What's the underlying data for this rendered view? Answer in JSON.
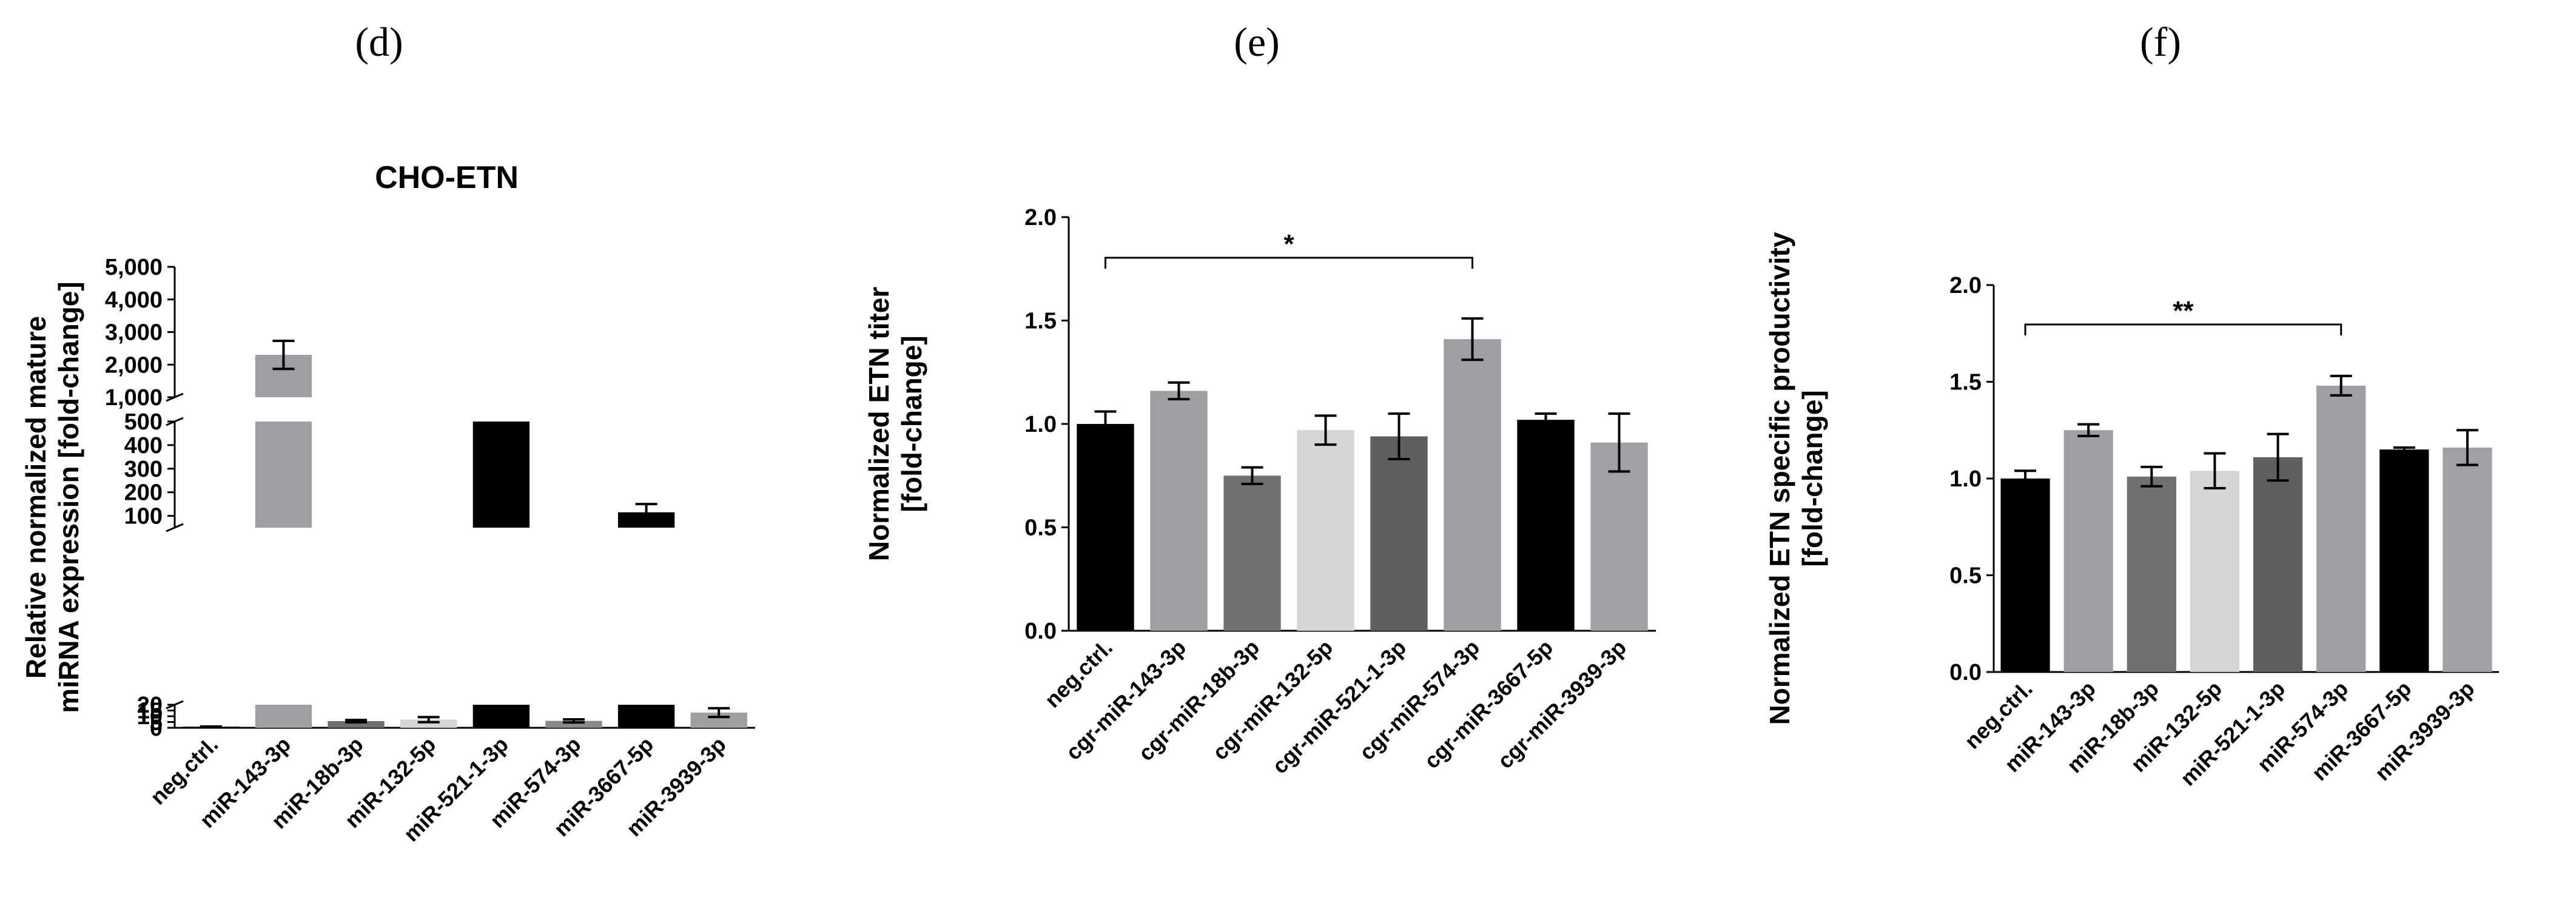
{
  "panels": {
    "d": {
      "label": "(d)"
    },
    "e": {
      "label": "(e)"
    },
    "f": {
      "label": "(f)"
    }
  },
  "chart_data": [
    {
      "id": "d",
      "type": "bar",
      "title": "CHO-ETN",
      "ylabel_lines": [
        "Relative normalized mature",
        "miRNA expression [fold-change]"
      ],
      "xlabel": "",
      "axis_break": true,
      "segments": [
        {
          "range": [
            0,
            20
          ],
          "ticks": [
            "0",
            "5",
            "10",
            "15",
            "20"
          ]
        },
        {
          "range": [
            50,
            500
          ],
          "ticks": [
            "100",
            "200",
            "300",
            "400",
            "500"
          ]
        },
        {
          "range": [
            1000,
            5000
          ],
          "ticks": [
            "1,000",
            "2,000",
            "3,000",
            "4,000",
            "5,000"
          ]
        }
      ],
      "categories": [
        "neg.ctrl.",
        "miR-143-3p",
        "miR-18b-3p",
        "miR-132-5p",
        "miR-521-1-3p",
        "miR-574-3p",
        "miR-3667-5p",
        "miR-3939-3p"
      ],
      "values": [
        1,
        2300,
        5.8,
        7.1,
        500,
        6.0,
        115,
        13.2
      ],
      "errors": [
        0.1,
        430,
        1.0,
        2.2,
        80,
        1.3,
        35,
        3.8
      ],
      "colors": [
        "#000000",
        "#9e9ea3",
        "#6f6f6f",
        "#d5d5d5",
        "#000000",
        "#8a8a8a",
        "#000000",
        "#9e9ea3"
      ]
    },
    {
      "id": "e",
      "type": "bar",
      "title": "",
      "ylabel_lines": [
        "Normalized ETN titer",
        "[fold-change]"
      ],
      "xlabel": "",
      "ylim": [
        0,
        2.0
      ],
      "yticks": [
        "0.0",
        "0.5",
        "1.0",
        "1.5",
        "2.0"
      ],
      "categories": [
        "neg.ctrl.",
        "cgr-miR-143-3p",
        "cgr-miR-18b-3p",
        "cgr-miR-132-5p",
        "cgr-miR-521-1-3p",
        "cgr-miR-574-3p",
        "cgr-miR-3667-5p",
        "cgr-miR-3939-3p"
      ],
      "values": [
        1.0,
        1.16,
        0.75,
        0.97,
        0.94,
        1.41,
        1.02,
        0.91
      ],
      "errors": [
        0.06,
        0.04,
        0.04,
        0.07,
        0.11,
        0.1,
        0.03,
        0.14
      ],
      "colors": [
        "#000000",
        "#9e9ea3",
        "#707070",
        "#d5d5d5",
        "#5f5f5f",
        "#9e9ea3",
        "#000000",
        "#a0a0a5"
      ],
      "significance": [
        {
          "from": 0,
          "to": 5,
          "label": "*"
        }
      ]
    },
    {
      "id": "f",
      "type": "bar",
      "title": "",
      "ylabel_lines": [
        "Normalized ETN specific productivity",
        "[fold-change]"
      ],
      "xlabel": "",
      "ylim": [
        0,
        2.0
      ],
      "yticks": [
        "0.0",
        "0.5",
        "1.0",
        "1.5",
        "2.0"
      ],
      "categories": [
        "neg.ctrl.",
        "miR-143-3p",
        "miR-18b-3p",
        "miR-132-5p",
        "miR-521-1-3p",
        "miR-574-3p",
        "miR-3667-5p",
        "miR-3939-3p"
      ],
      "values": [
        1.0,
        1.25,
        1.01,
        1.04,
        1.11,
        1.48,
        1.15,
        1.16
      ],
      "errors": [
        0.04,
        0.03,
        0.05,
        0.09,
        0.12,
        0.05,
        0.01,
        0.09
      ],
      "colors": [
        "#000000",
        "#9e9ea3",
        "#707070",
        "#d5d5d5",
        "#5f5f5f",
        "#9e9ea3",
        "#000000",
        "#a0a0a5"
      ],
      "significance": [
        {
          "from": 0,
          "to": 5,
          "label": "**"
        }
      ]
    }
  ]
}
